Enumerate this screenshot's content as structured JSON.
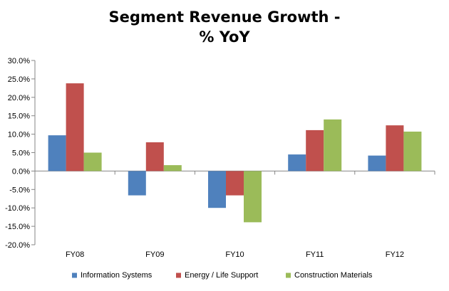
{
  "chart_data": {
    "type": "bar",
    "title_lines": [
      "Segment Revenue Growth -",
      "% YoY"
    ],
    "categories": [
      "FY08",
      "FY09",
      "FY10",
      "FY11",
      "FY12"
    ],
    "series": [
      {
        "name": "Information Systems",
        "color": "#4F81BD",
        "values": [
          9.7,
          -6.6,
          -10.0,
          4.5,
          4.2
        ]
      },
      {
        "name": "Energy / Life Support",
        "color": "#C0504D",
        "values": [
          23.8,
          7.8,
          -6.6,
          11.1,
          12.4
        ]
      },
      {
        "name": "Construction Materials",
        "color": "#9BBB59",
        "values": [
          5.0,
          1.6,
          -13.9,
          14.0,
          10.7
        ]
      }
    ],
    "ylim": [
      -20,
      30
    ],
    "yticks": [
      "-20.0%",
      "-15.0%",
      "-10.0%",
      "-5.0%",
      "0.0%",
      "5.0%",
      "10.0%",
      "15.0%",
      "20.0%",
      "25.0%",
      "30.0%"
    ],
    "grid": false,
    "legend_position": "bottom"
  }
}
